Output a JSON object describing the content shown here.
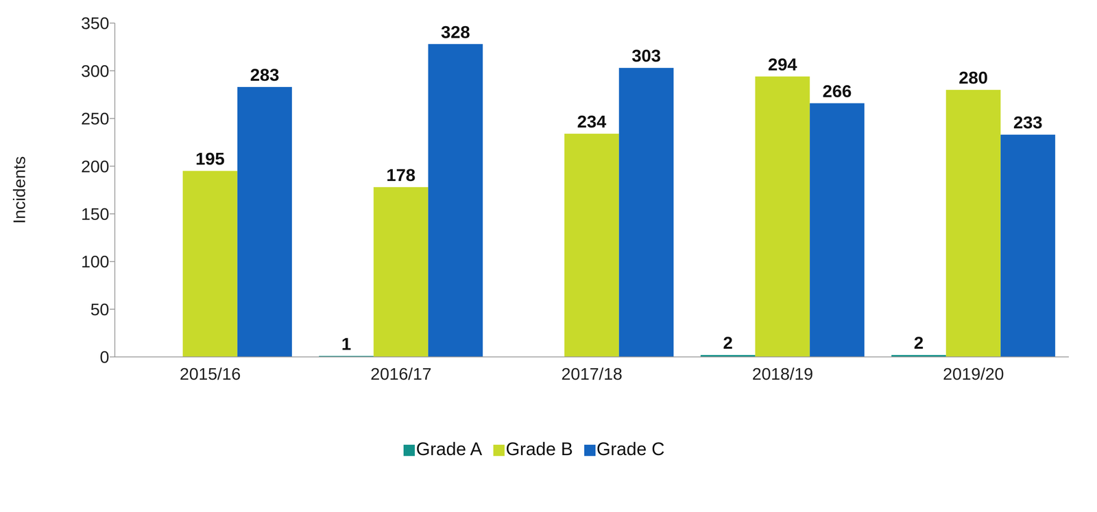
{
  "chart_data": {
    "type": "bar",
    "ylabel": "Incidents",
    "categories": [
      "2015/16",
      "2016/17",
      "2017/18",
      "2018/19",
      "2019/20"
    ],
    "series": [
      {
        "name": "Grade A",
        "color": "#13928a",
        "values": [
          null,
          1,
          null,
          2,
          2
        ]
      },
      {
        "name": "Grade B",
        "color": "#c8da2b",
        "values": [
          195,
          178,
          234,
          294,
          280
        ]
      },
      {
        "name": "Grade C",
        "color": "#1565c0",
        "values": [
          283,
          328,
          303,
          266,
          233
        ]
      }
    ],
    "ylim": [
      0,
      350
    ],
    "yticks": [
      0,
      50,
      100,
      150,
      200,
      250,
      300,
      350
    ],
    "grid": false,
    "legend": "bottom",
    "data_labels": true
  }
}
